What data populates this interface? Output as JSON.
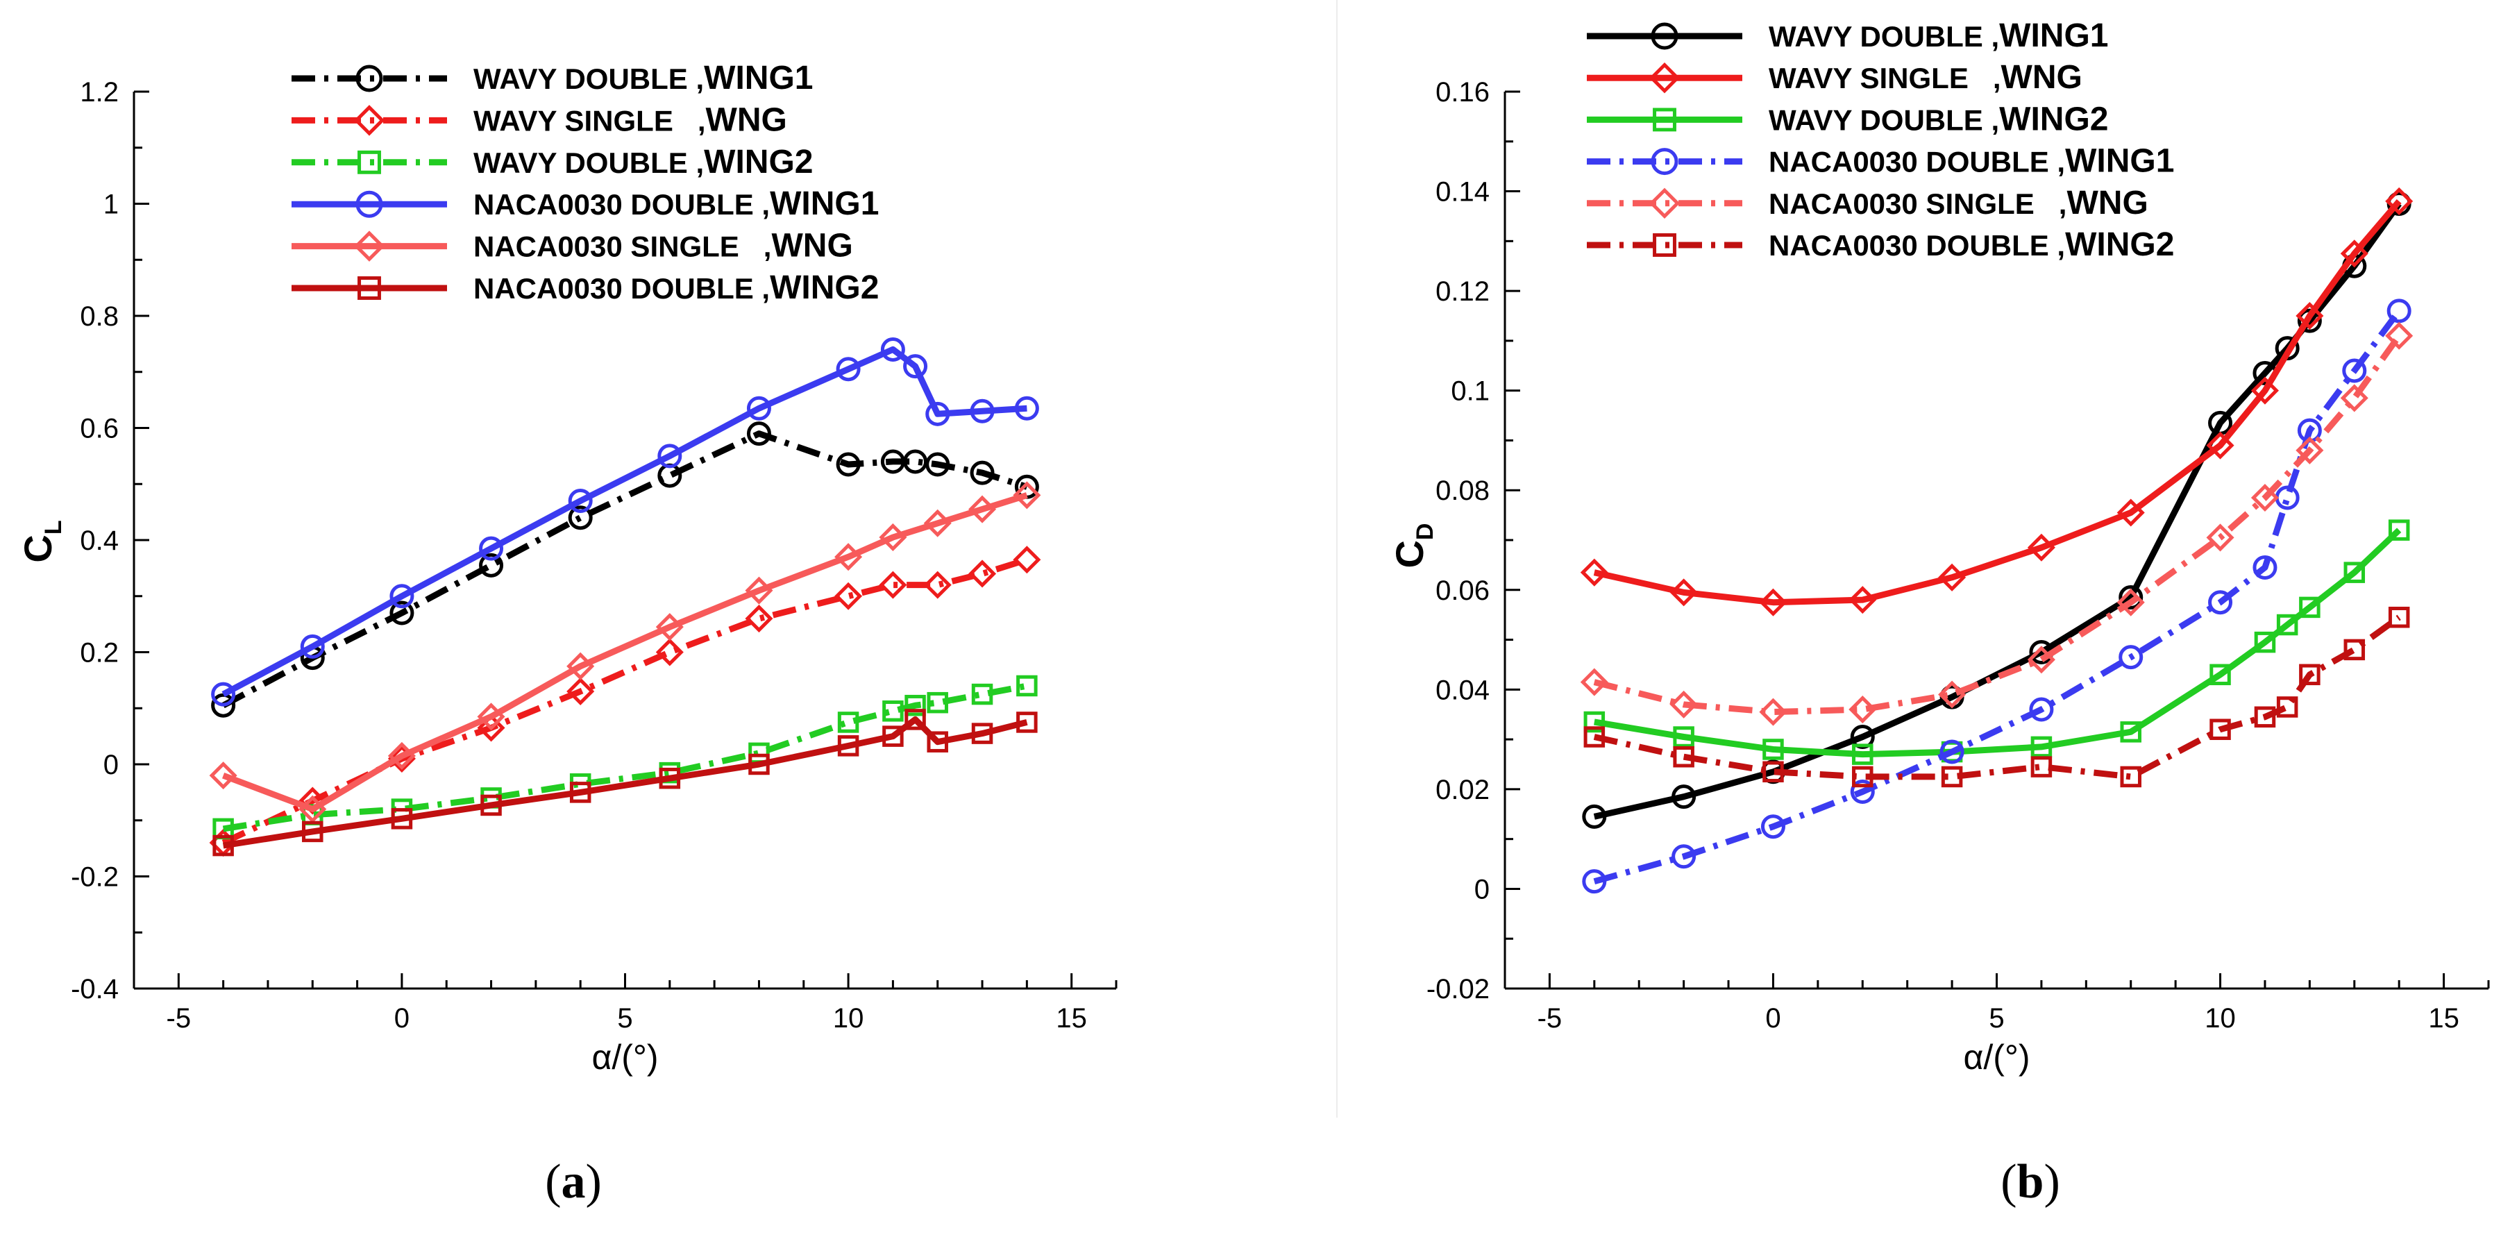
{
  "chart_data": [
    {
      "type": "line",
      "panel_label": "(a)",
      "panel_letter": "a",
      "ylabel": "C",
      "ylabel_sub": "L",
      "xlabel": "α/(°)",
      "xlim": [
        -6,
        16
      ],
      "ylim": [
        -0.4,
        1.2
      ],
      "xticks": [
        -5,
        0,
        5,
        10,
        15
      ],
      "xtick_labels": [
        "-5",
        "0",
        "5",
        "10",
        "15"
      ],
      "yticks": [
        -0.4,
        -0.2,
        0,
        0.2,
        0.4,
        0.6,
        0.8,
        1,
        1.2
      ],
      "ytick_labels": [
        "-0.4",
        "-0.2",
        "0",
        "0.2",
        "0.4",
        "0.6",
        "0.8",
        "1",
        "1.2"
      ],
      "legend_position": "top-center",
      "series": [
        {
          "name": "WAVY DOUBLE ,WING1",
          "name_main": "WAVY DOUBLE ,",
          "name_tail": "WING1",
          "color": "#000000",
          "dash": "dashdot",
          "marker": "circle",
          "x": [
            -4,
            -2,
            0,
            2,
            4,
            6,
            8,
            10,
            11,
            11.5,
            12,
            13,
            14
          ],
          "y": [
            0.105,
            0.19,
            0.27,
            0.355,
            0.44,
            0.515,
            0.59,
            0.535,
            0.54,
            0.54,
            0.535,
            0.52,
            0.495
          ]
        },
        {
          "name": "WAVY SINGLE   ,WNG",
          "name_main": "WAVY SINGLE   ,",
          "name_tail": "WNG",
          "color": "#ee1c1c",
          "dash": "dashdot",
          "marker": "diamond",
          "x": [
            -4,
            -2,
            0,
            2,
            4,
            6,
            8,
            10,
            11,
            12,
            13,
            14
          ],
          "y": [
            -0.14,
            -0.065,
            0.01,
            0.065,
            0.13,
            0.2,
            0.26,
            0.3,
            0.32,
            0.32,
            0.34,
            0.365
          ]
        },
        {
          "name": "WAVY DOUBLE ,WING2",
          "name_main": "WAVY DOUBLE ,",
          "name_tail": "WING2",
          "color": "#22cc22",
          "dash": "dashdot",
          "marker": "square",
          "x": [
            -4,
            -2,
            0,
            2,
            4,
            6,
            8,
            10,
            11,
            11.5,
            12,
            13,
            14
          ],
          "y": [
            -0.115,
            -0.09,
            -0.08,
            -0.06,
            -0.035,
            -0.015,
            0.02,
            0.075,
            0.095,
            0.105,
            0.11,
            0.125,
            0.14
          ]
        },
        {
          "name": "NACA0030 DOUBLE ,WING1",
          "name_main": "NACA0030 DOUBLE ,",
          "name_tail": "WING1",
          "color": "#3b3bf0",
          "dash": "solid",
          "marker": "circle",
          "x": [
            -4,
            -2,
            0,
            2,
            4,
            6,
            8,
            10,
            11,
            11.5,
            12,
            13,
            14
          ],
          "y": [
            0.125,
            0.21,
            0.3,
            0.385,
            0.47,
            0.55,
            0.635,
            0.705,
            0.74,
            0.71,
            0.625,
            0.63,
            0.635
          ]
        },
        {
          "name": "NACA0030 SINGLE   ,WNG",
          "name_main": "NACA0030 SINGLE   ,",
          "name_tail": "WNG",
          "color": "#f75a5a",
          "dash": "solid",
          "marker": "diamond",
          "x": [
            -4,
            -2,
            0,
            2,
            4,
            6,
            8,
            10,
            11,
            12,
            13,
            14
          ],
          "y": [
            -0.02,
            -0.08,
            0.015,
            0.085,
            0.175,
            0.245,
            0.31,
            0.37,
            0.405,
            0.43,
            0.455,
            0.48
          ]
        },
        {
          "name": "NACA0030 DOUBLE ,WING2",
          "name_main": "NACA0030 DOUBLE ,",
          "name_tail": "WING2",
          "color": "#c01010",
          "dash": "solid",
          "marker": "square",
          "x": [
            -4,
            -2,
            0,
            2,
            4,
            6,
            8,
            10,
            11,
            11.5,
            12,
            13,
            14
          ],
          "y": [
            -0.145,
            -0.12,
            -0.097,
            -0.073,
            -0.05,
            -0.025,
            0,
            0.033,
            0.05,
            0.08,
            0.04,
            0.055,
            0.075
          ]
        }
      ]
    },
    {
      "type": "line",
      "panel_label": "(b)",
      "panel_letter": "b",
      "ylabel": "C",
      "ylabel_sub": "D",
      "xlabel": "α/(°)",
      "xlim": [
        -6,
        16
      ],
      "ylim": [
        -0.02,
        0.16
      ],
      "xticks": [
        -5,
        0,
        5,
        10,
        15
      ],
      "xtick_labels": [
        "-5",
        "0",
        "5",
        "10",
        "15"
      ],
      "yticks": [
        -0.02,
        0,
        0.02,
        0.04,
        0.06,
        0.08,
        0.1,
        0.12,
        0.14,
        0.16
      ],
      "ytick_labels": [
        "-0.02",
        "0",
        "0.02",
        "0.04",
        "0.06",
        "0.08",
        "0.1",
        "0.12",
        "0.14",
        "0.16"
      ],
      "legend_position": "top-left",
      "series": [
        {
          "name": "WAVY DOUBLE ,WING1",
          "name_main": "WAVY DOUBLE ,",
          "name_tail": "WING1",
          "color": "#000000",
          "dash": "solid",
          "marker": "circle",
          "x": [
            -4,
            -2,
            0,
            2,
            4,
            6,
            8,
            10,
            11,
            11.5,
            12,
            13,
            14
          ],
          "y": [
            0.0145,
            0.0185,
            0.0235,
            0.0305,
            0.0385,
            0.0475,
            0.0585,
            0.0935,
            0.1035,
            0.1085,
            0.114,
            0.125,
            0.1375
          ]
        },
        {
          "name": "WAVY SINGLE   ,WNG",
          "name_main": "WAVY SINGLE   ,",
          "name_tail": "WNG",
          "color": "#ee1c1c",
          "dash": "solid",
          "marker": "diamond",
          "x": [
            -4,
            -2,
            0,
            2,
            4,
            6,
            8,
            10,
            11,
            12,
            13,
            14
          ],
          "y": [
            0.0635,
            0.0595,
            0.0575,
            0.058,
            0.0625,
            0.0685,
            0.0755,
            0.089,
            0.1,
            0.115,
            0.1275,
            0.138
          ]
        },
        {
          "name": "WAVY DOUBLE ,WING2",
          "name_main": "WAVY DOUBLE ,",
          "name_tail": "WING2",
          "color": "#22cc22",
          "dash": "solid",
          "marker": "square",
          "x": [
            -4,
            -2,
            0,
            2,
            4,
            6,
            8,
            10,
            11,
            11.5,
            12,
            13,
            14
          ],
          "y": [
            0.0335,
            0.0305,
            0.028,
            0.027,
            0.0275,
            0.0285,
            0.0315,
            0.043,
            0.0495,
            0.053,
            0.0565,
            0.0635,
            0.072
          ]
        },
        {
          "name": "NACA0030 DOUBLE ,WING1",
          "name_main": "NACA0030 DOUBLE ,",
          "name_tail": "WING1",
          "color": "#3b3bf0",
          "dash": "dashdot",
          "marker": "circle",
          "x": [
            -4,
            -2,
            0,
            2,
            4,
            6,
            8,
            10,
            11,
            11.5,
            12,
            13,
            14
          ],
          "y": [
            0.0015,
            0.0065,
            0.0125,
            0.0195,
            0.0275,
            0.036,
            0.0465,
            0.0575,
            0.0645,
            0.0785,
            0.092,
            0.104,
            0.116
          ]
        },
        {
          "name": "NACA0030 SINGLE   ,WNG",
          "name_main": "NACA0030 SINGLE   ,",
          "name_tail": "WNG",
          "color": "#f75a5a",
          "dash": "dashdot",
          "marker": "diamond",
          "x": [
            -4,
            -2,
            0,
            2,
            4,
            6,
            8,
            10,
            11,
            12,
            13,
            14
          ],
          "y": [
            0.0415,
            0.037,
            0.0355,
            0.036,
            0.039,
            0.046,
            0.0575,
            0.0705,
            0.0785,
            0.088,
            0.0985,
            0.111
          ]
        },
        {
          "name": "NACA0030 DOUBLE ,WING2",
          "name_main": "NACA0030 DOUBLE ,",
          "name_tail": "WING2",
          "color": "#c01010",
          "dash": "dashdot",
          "marker": "square",
          "x": [
            -4,
            -2,
            0,
            2,
            4,
            6,
            8,
            10,
            11,
            11.5,
            12,
            13,
            14
          ],
          "y": [
            0.0305,
            0.0265,
            0.0235,
            0.0225,
            0.0225,
            0.0245,
            0.0225,
            0.032,
            0.0345,
            0.0365,
            0.043,
            0.048,
            0.0545
          ]
        }
      ]
    }
  ]
}
